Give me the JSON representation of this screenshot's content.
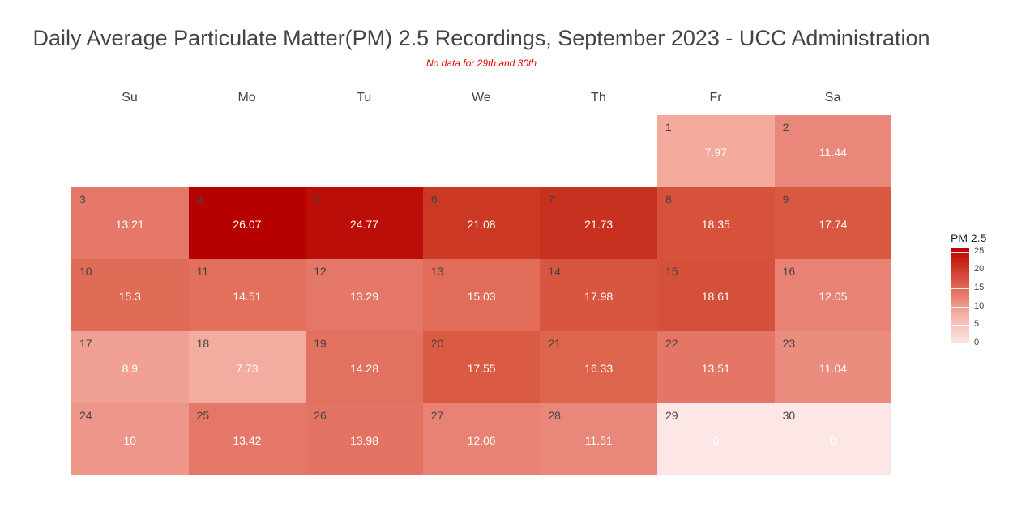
{
  "chart_data": {
    "type": "heatmap",
    "title": "Daily Average Particulate Matter(PM) 2.5 Recordings, September 2023 - UCC Administration",
    "subtitle": "No data for 29th and 30th",
    "weekdays": [
      "Su",
      "Mo",
      "Tu",
      "We",
      "Th",
      "Fr",
      "Sa"
    ],
    "days": [
      {
        "day": "1",
        "value": "7.97",
        "v": 7.97
      },
      {
        "day": "2",
        "value": "11.44",
        "v": 11.44
      },
      {
        "day": "3",
        "value": "13.21",
        "v": 13.21
      },
      {
        "day": "4",
        "value": "26.07",
        "v": 26.07
      },
      {
        "day": "5",
        "value": "24.77",
        "v": 24.77
      },
      {
        "day": "6",
        "value": "21.08",
        "v": 21.08
      },
      {
        "day": "7",
        "value": "21.73",
        "v": 21.73
      },
      {
        "day": "8",
        "value": "18.35",
        "v": 18.35
      },
      {
        "day": "9",
        "value": "17.74",
        "v": 17.74
      },
      {
        "day": "10",
        "value": "15.3",
        "v": 15.3
      },
      {
        "day": "11",
        "value": "14.51",
        "v": 14.51
      },
      {
        "day": "12",
        "value": "13.29",
        "v": 13.29
      },
      {
        "day": "13",
        "value": "15.03",
        "v": 15.03
      },
      {
        "day": "14",
        "value": "17.98",
        "v": 17.98
      },
      {
        "day": "15",
        "value": "18.61",
        "v": 18.61
      },
      {
        "day": "16",
        "value": "12.05",
        "v": 12.05
      },
      {
        "day": "17",
        "value": "8.9",
        "v": 8.9
      },
      {
        "day": "18",
        "value": "7.73",
        "v": 7.73
      },
      {
        "day": "19",
        "value": "14.28",
        "v": 14.28
      },
      {
        "day": "20",
        "value": "17.55",
        "v": 17.55
      },
      {
        "day": "21",
        "value": "16.33",
        "v": 16.33
      },
      {
        "day": "22",
        "value": "13.51",
        "v": 13.51
      },
      {
        "day": "23",
        "value": "11.04",
        "v": 11.04
      },
      {
        "day": "24",
        "value": "10",
        "v": 10
      },
      {
        "day": "25",
        "value": "13.42",
        "v": 13.42
      },
      {
        "day": "26",
        "value": "13.98",
        "v": 13.98
      },
      {
        "day": "27",
        "value": "12.06",
        "v": 12.06
      },
      {
        "day": "28",
        "value": "11.51",
        "v": 11.51
      },
      {
        "day": "29",
        "value": "0",
        "v": 0
      },
      {
        "day": "30",
        "value": "0",
        "v": 0
      }
    ],
    "first_weekday_index": 5,
    "legend": {
      "title": "PM 2.5",
      "ticks": [
        "25",
        "20",
        "15",
        "10",
        "5",
        "0"
      ],
      "tick_values": [
        25,
        20,
        15,
        10,
        5,
        0
      ],
      "range": [
        0,
        26.07
      ]
    },
    "colors": {
      "low": "#fde6e6",
      "high": "#b70000"
    }
  }
}
